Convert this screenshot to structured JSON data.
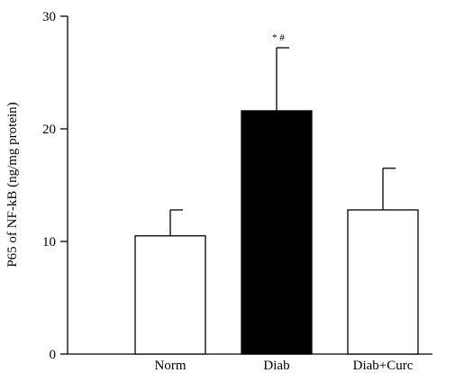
{
  "chart_data": {
    "type": "bar",
    "categories": [
      "Norm",
      "Diab",
      "Diab+Curc"
    ],
    "values": [
      10.5,
      21.6,
      12.8
    ],
    "errors": [
      2.3,
      5.6,
      3.7
    ],
    "ylabel": "P65 of NF-kB (ng/mg protein)",
    "xlabel": "",
    "ylim": [
      0,
      30
    ],
    "yticks": [
      0,
      10,
      20,
      30
    ],
    "annotations": [
      {
        "category": "Diab",
        "text": "* #"
      }
    ],
    "bar_colors": [
      "#ffffff",
      "#000000",
      "#ffffff"
    ],
    "grid": false
  }
}
